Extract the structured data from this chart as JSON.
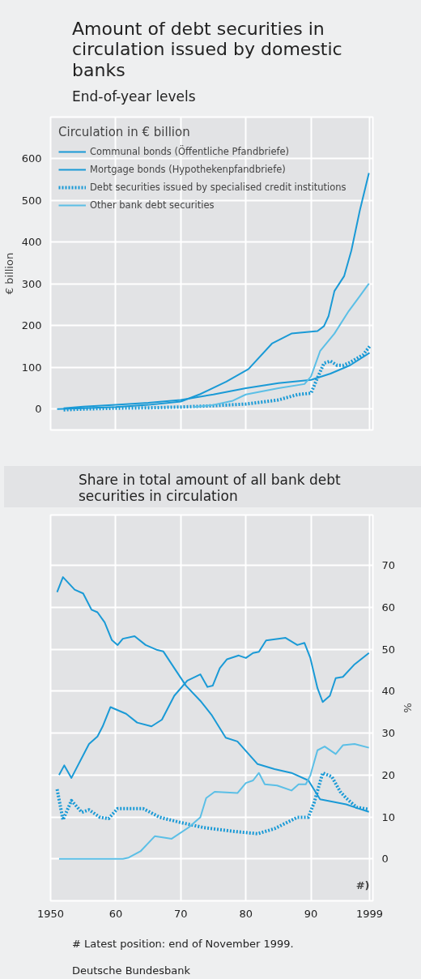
{
  "chart_data": [
    {
      "type": "line",
      "title": "Amount of debt securities in circulation issued by domestic banks",
      "subtitle": "End-of-year levels",
      "legend_title": "Circulation in € billion",
      "ylabel": "€ billion",
      "legend": "top left",
      "grid": true,
      "tick_labels": "y",
      "marker": "none",
      "xlim": [
        1950,
        1999.5
      ],
      "xticks": [
        1950,
        1960,
        1970,
        1980,
        1990,
        1999
      ],
      "ylim": [
        -50,
        700
      ],
      "yticks": [
        0,
        100,
        200,
        300,
        400,
        500,
        600
      ],
      "series": [
        {
          "name": "Communal bonds (Öffentliche Pfandbriefe)",
          "color": "#1a9ad6",
          "line_style": "solid",
          "x": [
            1951,
            1955,
            1960,
            1965,
            1970,
            1973,
            1977,
            1980.4,
            1984,
            1987,
            1991,
            1992,
            1992.7,
            1993.6,
            1995.1,
            1996.2,
            1997.5,
            1998.9
          ],
          "values": [
            0,
            2,
            5,
            10,
            18,
            36,
            66,
            96,
            157,
            181,
            187,
            199,
            223,
            283,
            319,
            380,
            476,
            566
          ]
        },
        {
          "name": "Mortgage bonds (Hypothekenpfandbriefe)",
          "color": "#1a9ad6",
          "line_style": "solid",
          "x": [
            1952,
            1955,
            1960,
            1965,
            1970,
            1975,
            1980,
            1985,
            1990,
            1993,
            1996,
            1999
          ],
          "values": [
            2,
            6,
            10,
            15,
            22,
            35,
            50,
            62,
            70,
            85,
            105,
            135
          ]
        },
        {
          "name": "Debt securities issued by specialised credit institutions",
          "color": "#1a9ad6",
          "line_style": "dotted",
          "x": [
            1952,
            1955,
            1960,
            1965,
            1970,
            1975,
            1980,
            1985,
            1988,
            1990,
            1991,
            1992,
            1993,
            1994,
            1995,
            1996,
            1998,
            1999
          ],
          "values": [
            -2,
            0,
            2,
            3,
            5,
            8,
            12,
            22,
            35,
            38,
            75,
            110,
            115,
            105,
            105,
            112,
            130,
            150
          ]
        },
        {
          "name": "Other bank debt securities",
          "color": "#5bbfe6",
          "line_style": "solid",
          "x": [
            1972,
            1975,
            1978,
            1980,
            1985,
            1989,
            1990,
            1991.4,
            1993.6,
            1995.8,
            1997.5,
            1998.9
          ],
          "values": [
            5,
            10,
            20,
            35,
            50,
            60,
            78,
            139,
            181,
            235,
            271,
            301
          ]
        }
      ]
    },
    {
      "type": "line",
      "title": "Share in total amount of all bank debt securities in circulation",
      "ylabel": "%",
      "grid": true,
      "marker": "none",
      "xlim": [
        1950,
        1999.5
      ],
      "xticks": [
        1950,
        {
          "value": 1960,
          "label": "60"
        },
        {
          "value": 1970,
          "label": "70"
        },
        {
          "value": 1980,
          "label": "80"
        },
        {
          "value": 1990,
          "label": "90"
        },
        1999
      ],
      "ylim": [
        -10,
        82
      ],
      "yticks": [
        0,
        10,
        20,
        30,
        40,
        50,
        60,
        70
      ],
      "annotations": [
        "#)",
        "# Latest position: end of November 1999.",
        "Deutsche Bundesbank"
      ],
      "series": [
        {
          "color": "#1a9ad6",
          "line_style": "solid",
          "x": [
            1951.3,
            1952.1,
            1953.2,
            1955.9,
            1957.2,
            1958,
            1959.2,
            1961.6,
            1963.3,
            1965.5,
            1967.1,
            1969,
            1971,
            1973,
            1974.1,
            1974.9,
            1976,
            1977.1,
            1978.9,
            1980,
            1981.1,
            1982,
            1983.1,
            1986.1,
            1987.9,
            1989,
            1989.9,
            1991,
            1991.8,
            1992.9,
            1993.8,
            1994.9,
            1996.7,
            1998.9
          ],
          "values": [
            20,
            22.3,
            19.3,
            27.4,
            29.2,
            31.6,
            36.2,
            34.6,
            32.5,
            31.6,
            33.2,
            38.9,
            42.5,
            44,
            41,
            41.3,
            45.5,
            47.6,
            48.5,
            47.9,
            49.1,
            49.4,
            52.1,
            52.7,
            51,
            51.5,
            47.9,
            40.7,
            37.4,
            38.9,
            43.1,
            43.4,
            46.4,
            49.1
          ]
        },
        {
          "color": "#1a9ad6",
          "line_style": "solid",
          "x": [
            1951,
            1951.9,
            1953.7,
            1955,
            1956.3,
            1957.2,
            1958.3,
            1959.4,
            1960.3,
            1961.1,
            1962.9,
            1964.6,
            1966.4,
            1967.3,
            1969,
            1970.8,
            1973,
            1974.7,
            1976.9,
            1978.7,
            1981.8,
            1984.4,
            1987,
            1989.6,
            1991.4,
            1995.4,
            1997.1,
            1998.9
          ],
          "values": [
            63.6,
            67.2,
            64.2,
            63.3,
            59.4,
            58.8,
            56.4,
            52.2,
            51,
            52.5,
            53.1,
            51,
            49.8,
            49.5,
            45.5,
            41.3,
            37.7,
            34.4,
            28.9,
            28,
            22.6,
            21.4,
            20.5,
            18.7,
            14.2,
            13,
            12.1,
            11.2
          ]
        },
        {
          "color": "#1a9ad6",
          "line_style": "dotted",
          "x": [
            1951,
            1951.9,
            1953.2,
            1954.8,
            1955.9,
            1957.6,
            1958.9,
            1960.3,
            1964.2,
            1966.8,
            1969.9,
            1973.4,
            1977.8,
            1981.8,
            1984.4,
            1987.9,
            1989.6,
            1990.5,
            1991.8,
            1993.2,
            1994.5,
            1995.4,
            1997,
            1998.9
          ],
          "values": [
            16.6,
            9.3,
            13.9,
            11.1,
            11.7,
            9.9,
            9.6,
            12,
            12,
            9.9,
            8.7,
            7.5,
            6.6,
            6,
            7.2,
            9.9,
            9.9,
            13.5,
            20.5,
            19.6,
            16,
            14.5,
            12.3,
            11.8
          ]
        },
        {
          "color": "#5bbfe6",
          "line_style": "solid",
          "x": [
            1951.3,
            1961.1,
            1962,
            1963.8,
            1966,
            1968.6,
            1971.2,
            1973,
            1973.9,
            1975.2,
            1978.7,
            1980,
            1981.1,
            1982,
            1982.9,
            1984.8,
            1987,
            1988.1,
            1989.2,
            1989.9,
            1991,
            1992.1,
            1993.8,
            1994.9,
            1996.7,
            1998.9
          ],
          "values": [
            0,
            0,
            0.3,
            1.8,
            5.4,
            4.8,
            7.5,
            9.9,
            14.5,
            16,
            15.7,
            18.1,
            18.7,
            20.5,
            17.8,
            17.5,
            16.3,
            17.8,
            17.8,
            19.9,
            25.9,
            26.8,
            25,
            27.1,
            27.4,
            26.5
          ]
        }
      ]
    }
  ]
}
